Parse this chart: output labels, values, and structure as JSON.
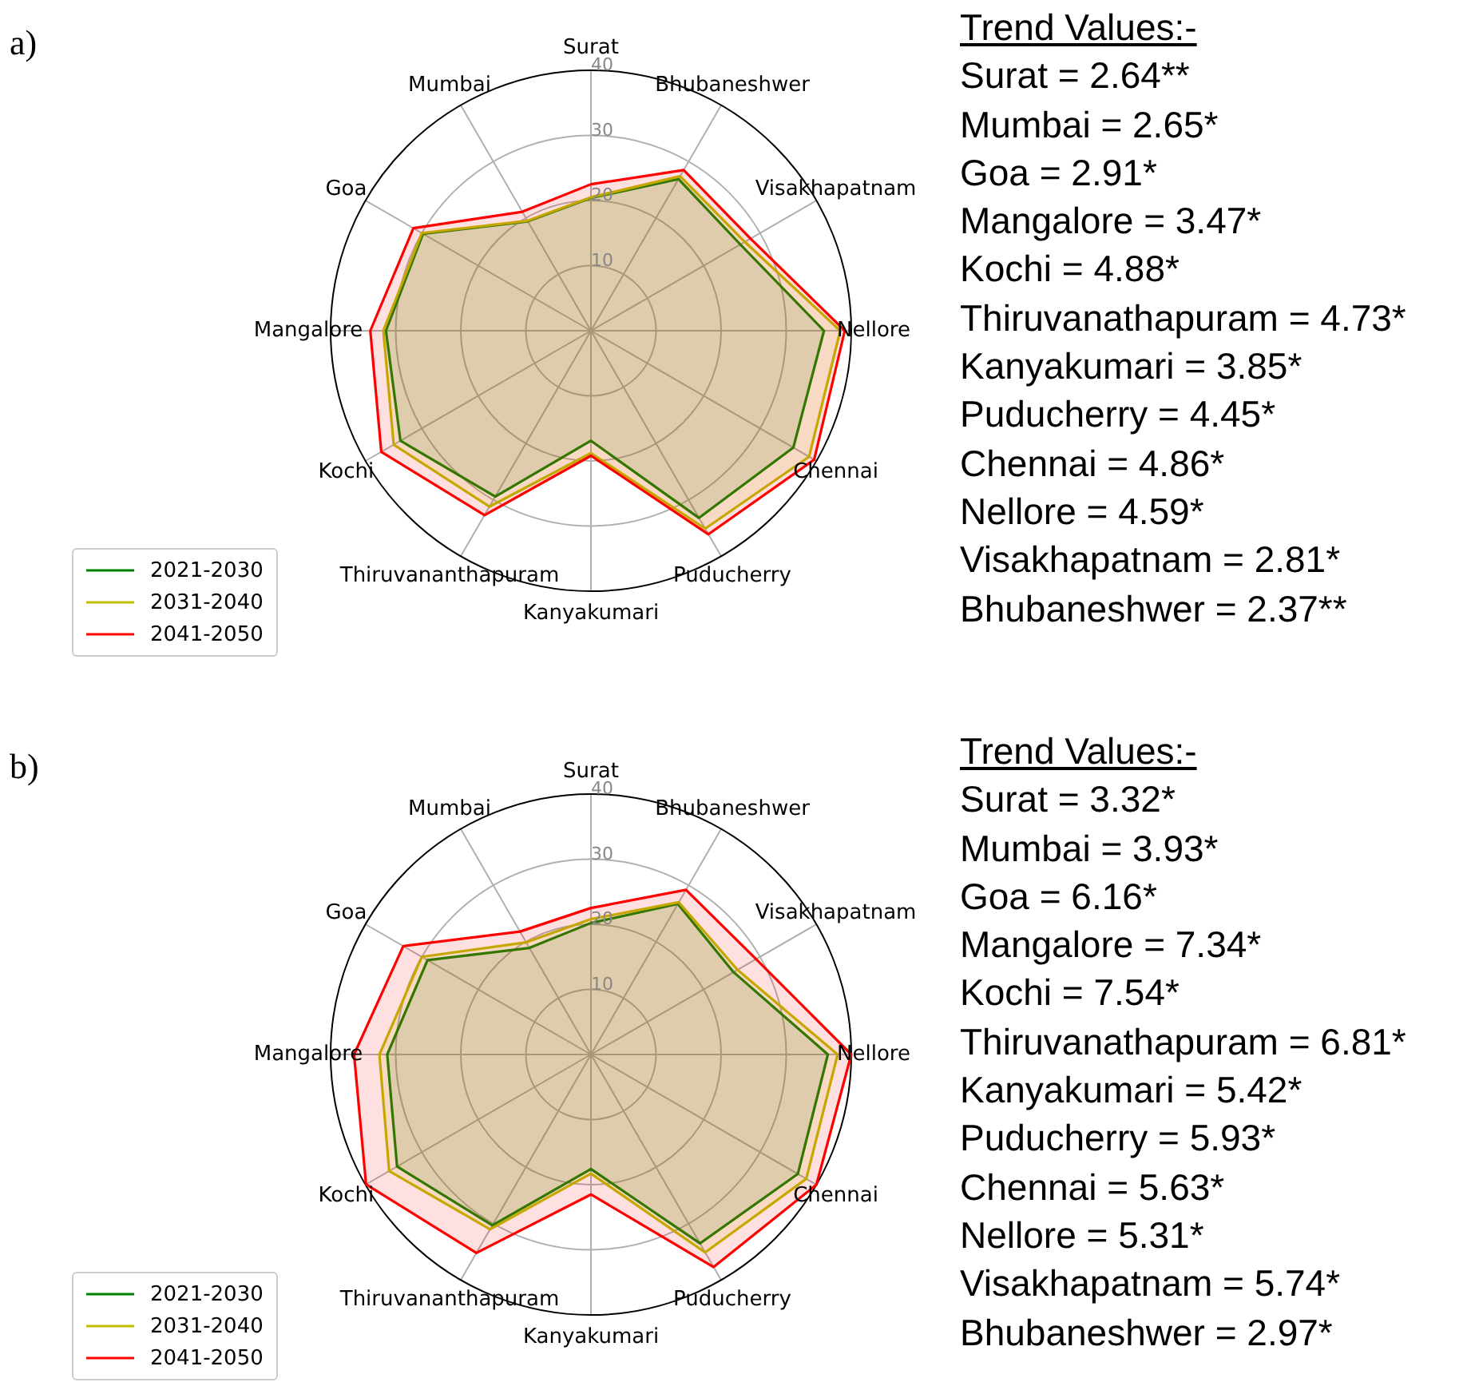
{
  "chart_data": [
    {
      "type": "radar",
      "title": "a)",
      "categories": [
        "Surat",
        "Bhubaneshwer",
        "Visakhapatnam",
        "Nellore",
        "Chennai",
        "Puducherry",
        "Kanyakumari",
        "Thiruvananthapuram",
        "Kochi",
        "Mangalore",
        "Goa",
        "Mumbai"
      ],
      "ylim": [
        0,
        40
      ],
      "yticks": [
        10,
        20,
        30,
        40
      ],
      "grid": true,
      "legend": "bottom left",
      "series": [
        {
          "name": "2021-2030",
          "color": "#008000",
          "values": [
            20.4,
            26.9,
            26.5,
            35.8,
            35.9,
            33.2,
            16.9,
            29.4,
            33.8,
            31.5,
            29.8,
            19.4
          ]
        },
        {
          "name": "2031-2040",
          "color": "#bfbf00",
          "values": [
            20.5,
            27.4,
            27.3,
            38.3,
            38.7,
            35.1,
            18.8,
            31.2,
            35.0,
            31.9,
            30.0,
            19.5
          ]
        },
        {
          "name": "2041-2050",
          "color": "#ff0000",
          "values": [
            22.5,
            28.5,
            28.3,
            39.0,
            39.6,
            36.1,
            19.2,
            32.7,
            37.2,
            33.9,
            31.5,
            21.1
          ]
        }
      ]
    },
    {
      "type": "other",
      "title": "Trend Values:-",
      "annotations": [
        "Surat = 2.64**",
        "Mumbai = 2.65*",
        "Goa = 2.91*",
        "Mangalore = 3.47*",
        "Kochi = 4.88*",
        "Thiruvanathapuram = 4.73*",
        "Kanyakumari = 3.85*",
        "Puducherry = 4.45*",
        "Chennai = 4.86*",
        "Nellore = 4.59*",
        "Visakhapatnam = 2.81*",
        "Bhubaneshwer = 2.37**"
      ]
    },
    {
      "type": "radar",
      "title": "b)",
      "categories": [
        "Surat",
        "Bhubaneshwer",
        "Visakhapatnam",
        "Nellore",
        "Chennai",
        "Puducherry",
        "Kanyakumari",
        "Thiruvananthapuram",
        "Kochi",
        "Mangalore",
        "Goa",
        "Mumbai"
      ],
      "ylim": [
        0,
        40
      ],
      "yticks": [
        10,
        20,
        30,
        40
      ],
      "grid": true,
      "legend": "bottom left",
      "series": [
        {
          "name": "2021-2030",
          "color": "#008000",
          "values": [
            20.2,
            26.7,
            25.3,
            36.4,
            36.7,
            33.5,
            17.6,
            30.3,
            34.4,
            31.3,
            29.0,
            18.9
          ]
        },
        {
          "name": "2031-2040",
          "color": "#bfbf00",
          "values": [
            20.8,
            27.0,
            26.0,
            37.9,
            38.2,
            35.1,
            18.3,
            31.0,
            35.8,
            32.5,
            30.0,
            19.9
          ]
        },
        {
          "name": "2041-2050",
          "color": "#ff0000",
          "values": [
            22.5,
            29.2,
            29.3,
            40.0,
            40.0,
            37.7,
            21.5,
            35.2,
            39.9,
            36.4,
            33.3,
            21.8
          ]
        }
      ]
    },
    {
      "type": "other",
      "title": "Trend Values:-",
      "annotations": [
        "Surat = 3.32*",
        "Mumbai = 3.93*",
        "Goa = 6.16*",
        "Mangalore = 7.34*",
        "Kochi = 7.54*",
        "Thiruvanathapuram = 6.81*",
        "Kanyakumari = 5.42*",
        "Puducherry = 5.93*",
        "Chennai = 5.63*",
        "Nellore = 5.31*",
        "Visakhapatnam = 5.74*",
        "Bhubaneshwer = 2.97*"
      ]
    }
  ]
}
